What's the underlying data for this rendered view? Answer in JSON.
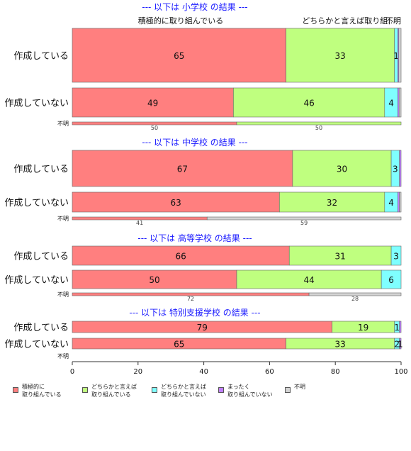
{
  "chart_data": {
    "type": "bar",
    "orientation": "horizontal",
    "stacked": true,
    "xlim": [
      0,
      100
    ],
    "x_ticks": [
      0,
      20,
      40,
      60,
      80,
      100
    ],
    "top_labels": [
      "積極的に取り組んでいる",
      "どちらかと言えば取り組...",
      "不明"
    ],
    "series_names": [
      "積極的に\n取り組んでいる",
      "どちらかと言えば\n取り組んでいる",
      "どちらかと言えば\n取り組んでいない",
      "まったく\n取り組んでいない",
      "不明"
    ],
    "colors": [
      "#FF7F7F",
      "#BFFF7F",
      "#7FFFFF",
      "#BF7FFF",
      "#D3D3D3"
    ],
    "groups": [
      {
        "title": "--- 以下は 小学校 の結果 ---",
        "rows": [
          {
            "label": "作成している",
            "values": [
              65,
              33,
              1,
              0.3,
              0.7
            ],
            "data_labels": [
              "65",
              "33",
              "1",
              "",
              ""
            ]
          },
          {
            "label": "作成していない",
            "values": [
              49,
              46,
              4,
              0.4,
              0.6
            ],
            "data_labels": [
              "49",
              "46",
              "4",
              "",
              ""
            ]
          },
          {
            "label": "不明",
            "values": [
              50,
              50,
              0,
              0,
              0
            ],
            "data_labels": [
              "50",
              "50",
              "",
              "",
              ""
            ]
          }
        ]
      },
      {
        "title": "--- 以下は 中学校 の結果 ---",
        "rows": [
          {
            "label": "作成している",
            "values": [
              67,
              30,
              2.5,
              0.5,
              0
            ],
            "data_labels": [
              "67",
              "30",
              "3",
              "",
              ""
            ]
          },
          {
            "label": "作成していない",
            "values": [
              63,
              32,
              4,
              0.5,
              0.5
            ],
            "data_labels": [
              "63",
              "32",
              "4",
              "",
              ""
            ]
          },
          {
            "label": "不明",
            "values": [
              41,
              0,
              0,
              0,
              59
            ],
            "data_labels": [
              "41",
              "",
              "",
              "",
              "59"
            ]
          }
        ]
      },
      {
        "title": "--- 以下は 高等学校 の結果 ---",
        "rows": [
          {
            "label": "作成している",
            "values": [
              66,
              31,
              3,
              0,
              0
            ],
            "data_labels": [
              "66",
              "31",
              "3",
              "",
              ""
            ]
          },
          {
            "label": "作成していない",
            "values": [
              50,
              44,
              6,
              0,
              0
            ],
            "data_labels": [
              "50",
              "44",
              "6",
              "",
              ""
            ]
          },
          {
            "label": "不明",
            "values": [
              72,
              0,
              0,
              0,
              28
            ],
            "data_labels": [
              "72",
              "",
              "",
              "",
              "28"
            ]
          }
        ]
      },
      {
        "title": "--- 以下は 特別支援学校 の結果 ---",
        "rows": [
          {
            "label": "作成している",
            "values": [
              79,
              19,
              1.5,
              0.5,
              0
            ],
            "data_labels": [
              "79",
              "19",
              "1",
              "",
              ""
            ]
          },
          {
            "label": "作成していない",
            "values": [
              65,
              33,
              1.5,
              0.5,
              0
            ],
            "data_labels": [
              "65",
              "33",
              "2",
              "1",
              ""
            ]
          },
          {
            "label": "不明",
            "values": [
              0,
              0,
              0,
              0,
              0
            ],
            "data_labels": [
              "",
              "",
              "",
              "",
              ""
            ]
          }
        ]
      }
    ]
  }
}
